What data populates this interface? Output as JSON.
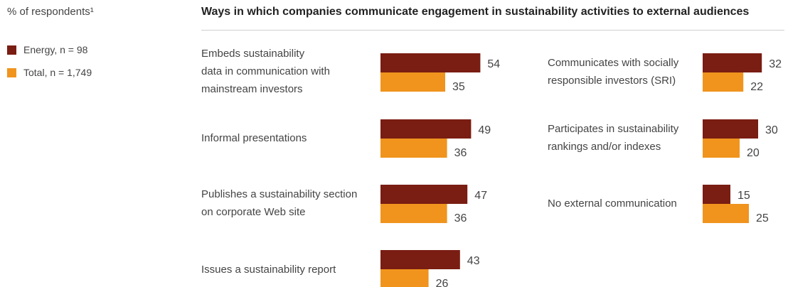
{
  "colors": {
    "energy": "#7a1d12",
    "total": "#f0941e"
  },
  "chart_data": {
    "type": "bar",
    "orientation": "horizontal",
    "title": "Ways in which companies communicate engagement in sustainability activities to external audiences",
    "unit_label": "% of respondents¹",
    "legend_position": "top-left",
    "series": [
      {
        "name": "Energy, n = 98",
        "color": "#7a1d12"
      },
      {
        "name": "Total, n = 1,749",
        "color": "#f0941e"
      }
    ],
    "categories": [
      {
        "label": [
          "Embeds sustainability",
          "data in communication with",
          "mainstream investors"
        ],
        "energy": 54,
        "total": 35
      },
      {
        "label": [
          "Informal presentations"
        ],
        "energy": 49,
        "total": 36
      },
      {
        "label": [
          "Publishes a sustainability section",
          "on corporate Web site"
        ],
        "energy": 47,
        "total": 36
      },
      {
        "label": [
          "Issues a sustainability report"
        ],
        "energy": 43,
        "total": 26
      },
      {
        "label": [
          "Communicates with socially",
          "responsible investors (SRI)"
        ],
        "energy": 32,
        "total": 22
      },
      {
        "label": [
          "Participates in sustainability",
          "rankings and/or indexes"
        ],
        "energy": 30,
        "total": 20
      },
      {
        "label": [
          "No external communication"
        ],
        "energy": 15,
        "total": 25
      }
    ]
  }
}
